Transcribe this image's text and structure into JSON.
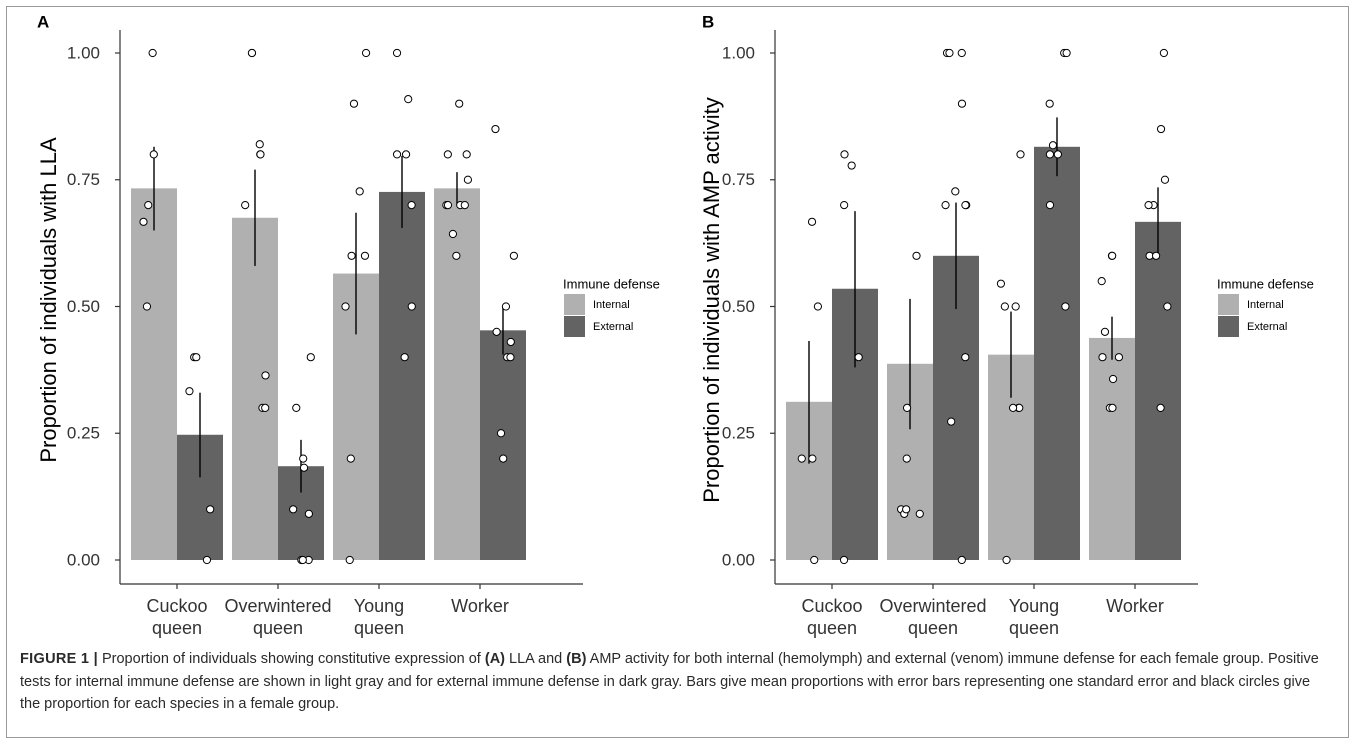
{
  "colors": {
    "internal": "#b0b0b0",
    "external": "#636363",
    "axis": "#333333"
  },
  "caption": {
    "figure_label": "FIGURE 1 |",
    "t1": " Proportion of individuals showing constitutive expression of ",
    "b1": "(A)",
    "t2": " LLA and ",
    "b2": "(B)",
    "t3": " AMP activity for both internal (hemolymph) and external (venom) immune defense for each female group. Positive tests for internal immune defense are shown in light gray and for external immune defense in dark gray. Bars give mean proportions with error bars representing one standard error and black circles give the proportion for each species in a female group."
  },
  "chart_data": [
    {
      "type": "bar",
      "panel_label": "A",
      "ylabel": "Proportion of individuals with LLA",
      "xlabel": "",
      "ylim": [
        0,
        1
      ],
      "yticks": [
        "0.00",
        "0.25",
        "0.50",
        "0.75",
        "1.00"
      ],
      "categories": [
        [
          "Cuckoo",
          "queen"
        ],
        [
          "Overwintered",
          "queen"
        ],
        [
          "Young",
          "queen"
        ],
        [
          "Worker"
        ]
      ],
      "legend": {
        "title": "Immune defense",
        "placement": "right"
      },
      "series": [
        {
          "name": "Internal",
          "values": [
            0.733,
            0.675,
            0.565,
            0.733
          ],
          "se_low": [
            0.65,
            0.58,
            0.445,
            0.7
          ],
          "se_high": [
            0.815,
            0.77,
            0.685,
            0.765
          ],
          "points": [
            [
              1.0,
              0.8,
              0.7,
              0.667,
              0.5
            ],
            [
              1.0,
              1.0,
              0.82,
              0.8,
              0.8,
              0.7,
              0.364,
              0.3,
              0.3
            ],
            [
              1.0,
              0.9,
              0.727,
              0.6,
              0.6,
              0.5,
              0.2,
              0.0
            ],
            [
              0.9,
              0.8,
              0.8,
              0.75,
              0.7,
              0.7,
              0.7,
              0.7,
              0.643,
              0.6
            ]
          ]
        },
        {
          "name": "External",
          "values": [
            0.247,
            0.185,
            0.726,
            0.453
          ],
          "se_low": [
            0.163,
            0.133,
            0.655,
            0.405
          ],
          "se_high": [
            0.33,
            0.237,
            0.797,
            0.5
          ],
          "points": [
            [
              0.4,
              0.4,
              0.333,
              0.1,
              0.0
            ],
            [
              0.4,
              0.3,
              0.2,
              0.182,
              0.1,
              0.091,
              0.0,
              0.0,
              0.0
            ],
            [
              1.0,
              0.909,
              0.8,
              0.8,
              0.7,
              0.5,
              0.4
            ],
            [
              0.85,
              0.6,
              0.5,
              0.45,
              0.43,
              0.4,
              0.4,
              0.25,
              0.2
            ]
          ]
        }
      ]
    },
    {
      "type": "bar",
      "panel_label": "B",
      "ylabel": "Proportion of individuals with AMP activity",
      "xlabel": "",
      "ylim": [
        0,
        1
      ],
      "yticks": [
        "0.00",
        "0.25",
        "0.50",
        "0.75",
        "1.00"
      ],
      "categories": [
        [
          "Cuckoo",
          "queen"
        ],
        [
          "Overwintered",
          "queen"
        ],
        [
          "Young",
          "queen"
        ],
        [
          "Worker"
        ]
      ],
      "legend": {
        "title": "Immune defense",
        "placement": "right"
      },
      "series": [
        {
          "name": "Internal",
          "values": [
            0.312,
            0.387,
            0.405,
            0.438
          ],
          "se_low": [
            0.19,
            0.258,
            0.32,
            0.395
          ],
          "se_high": [
            0.432,
            0.515,
            0.49,
            0.48
          ],
          "points": [
            [
              0.667,
              0.5,
              0.2,
              0.2,
              0.0
            ],
            [
              0.6,
              0.3,
              0.2,
              0.1,
              0.091,
              0.091,
              0.1
            ],
            [
              0.8,
              0.545,
              0.5,
              0.5,
              0.3,
              0.3,
              0.3,
              0.0
            ],
            [
              0.6,
              0.6,
              0.55,
              0.45,
              0.4,
              0.4,
              0.357,
              0.3,
              0.3
            ]
          ]
        },
        {
          "name": "External",
          "values": [
            0.535,
            0.6,
            0.815,
            0.667
          ],
          "se_low": [
            0.38,
            0.495,
            0.757,
            0.6
          ],
          "se_high": [
            0.688,
            0.705,
            0.873,
            0.735
          ],
          "points": [
            [
              0.8,
              0.778,
              0.7,
              0.4,
              0.0
            ],
            [
              1.0,
              1.0,
              1.0,
              0.9,
              0.727,
              0.7,
              0.7,
              0.7,
              0.4,
              0.273,
              0.0
            ],
            [
              1.0,
              1.0,
              0.9,
              0.818,
              0.8,
              0.8,
              0.7,
              0.5
            ],
            [
              1.0,
              0.85,
              0.75,
              0.7,
              0.7,
              0.6,
              0.6,
              0.5,
              0.3
            ]
          ]
        }
      ]
    }
  ]
}
